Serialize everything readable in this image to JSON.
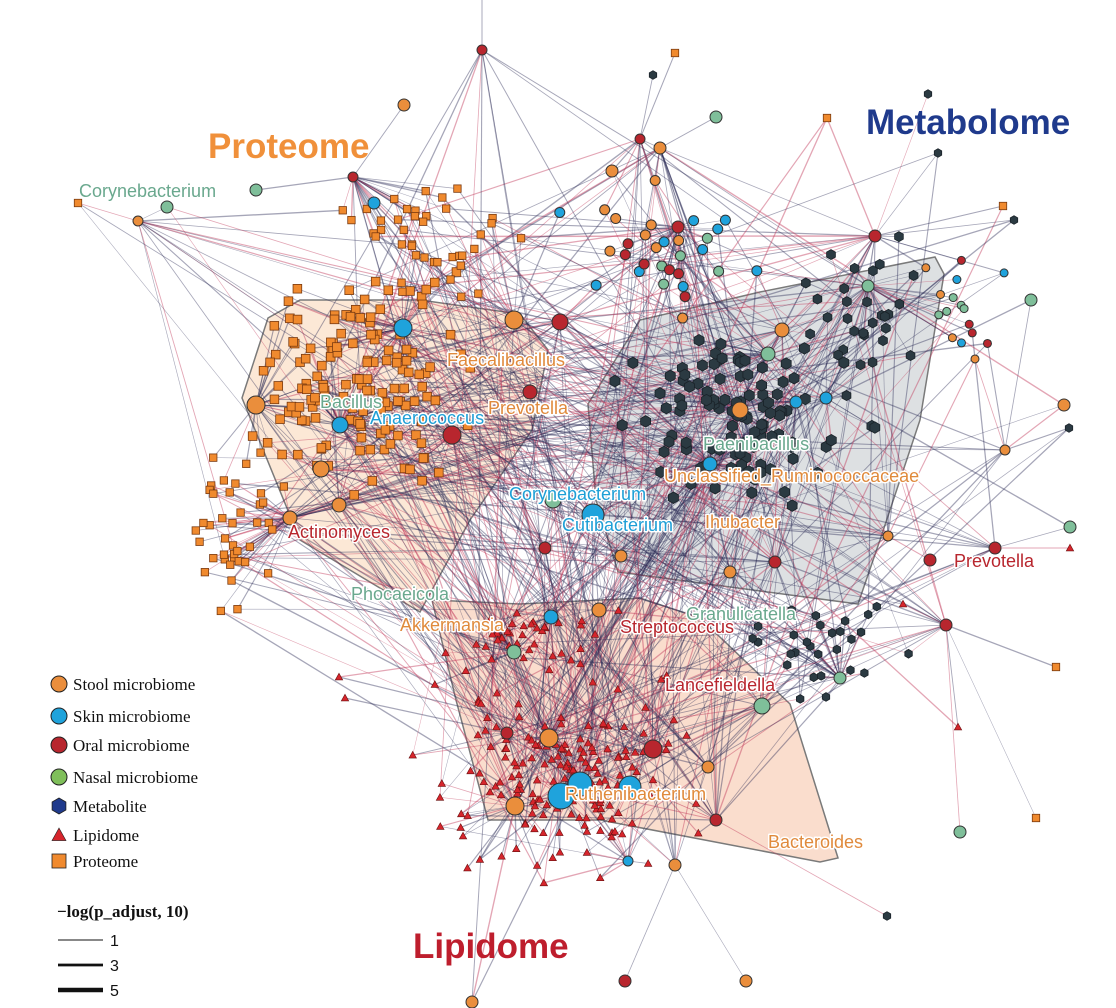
{
  "groups": [
    {
      "key": "proteome",
      "label": "Proteome",
      "color": "#f0903a"
    },
    {
      "key": "metabolome",
      "label": "Metabolome",
      "color": "#1f3a8c"
    },
    {
      "key": "lipidome",
      "label": "Lipidome",
      "color": "#be1e2d"
    }
  ],
  "node_types": {
    "stool": {
      "label": "Stool microbiome",
      "color": "#ea8e3c"
    },
    "skin": {
      "label": "Skin microbiome",
      "color": "#1fa3dc"
    },
    "oral": {
      "label": "Oral microbiome",
      "color": "#b8262e"
    },
    "nasal": {
      "label": "Nasal microbiome",
      "color": "#7fbf5a"
    },
    "metabolite": {
      "label": "Metabolite",
      "color": "#1f3a8c"
    },
    "lipid": {
      "label": "Lipidome",
      "color": "#d6252c"
    },
    "protein": {
      "label": "Proteome",
      "color": "#f08a2e"
    }
  },
  "taxa": [
    {
      "name": "Corynebacterium",
      "type": "nasal",
      "color": "#6aa88e"
    },
    {
      "name": "Faecalibacillus",
      "type": "stool",
      "color": "#e08a3c"
    },
    {
      "name": "Bacillus",
      "type": "nasal",
      "color": "#6aa88e"
    },
    {
      "name": "Anaerococcus",
      "type": "skin",
      "color": "#1e9fd6"
    },
    {
      "name": "Prevotella",
      "type": "stool",
      "color": "#e08a3c"
    },
    {
      "name": "Paenibacillus",
      "type": "nasal",
      "color": "#6aa88e"
    },
    {
      "name": "Unclassified_Ruminococcaceae",
      "type": "stool",
      "color": "#e08a3c"
    },
    {
      "name": "Corynebacterium",
      "type": "skin",
      "color": "#1e9fd6"
    },
    {
      "name": "Cutibacterium",
      "type": "skin",
      "color": "#1e9fd6"
    },
    {
      "name": "Ihubacter",
      "type": "stool",
      "color": "#e08a3c"
    },
    {
      "name": "Actinomyces",
      "type": "oral",
      "color": "#b8262e"
    },
    {
      "name": "Prevotella",
      "type": "oral",
      "color": "#b8262e"
    },
    {
      "name": "Phocaeicola",
      "type": "nasal",
      "color": "#6aa88e"
    },
    {
      "name": "Akkermansia",
      "type": "stool",
      "color": "#e08a3c"
    },
    {
      "name": "Streptococcus",
      "type": "oral",
      "color": "#b8262e"
    },
    {
      "name": "Granulicatella",
      "type": "nasal",
      "color": "#6aa88e"
    },
    {
      "name": "Lancefieldella",
      "type": "oral",
      "color": "#b8262e"
    },
    {
      "name": "Ruthenibacterium",
      "type": "stool",
      "color": "#e08a3c"
    },
    {
      "name": "Bacteroides",
      "type": "stool",
      "color": "#e08a3c"
    }
  ],
  "legend": {
    "items": [
      {
        "label": "Stool microbiome",
        "shape": "circle",
        "color": "#ea8e3c"
      },
      {
        "label": "Skin microbiome",
        "shape": "circle",
        "color": "#1fa3dc"
      },
      {
        "label": "Oral microbiome",
        "shape": "circle",
        "color": "#b8262e"
      },
      {
        "label": "Nasal microbiome",
        "shape": "circle",
        "color": "#7fbf5a"
      },
      {
        "label": "Metabolite",
        "shape": "hexagon",
        "color": "#1f3a8c"
      },
      {
        "label": "Lipidome",
        "shape": "triangle",
        "color": "#d6252c"
      },
      {
        "label": "Proteome",
        "shape": "square",
        "color": "#f08a2e"
      }
    ],
    "edge_title": "−log(p_adjust, 10)",
    "edge_widths": [
      {
        "label": "1",
        "value": 1
      },
      {
        "label": "3",
        "value": 3
      },
      {
        "label": "5",
        "value": 5
      }
    ]
  },
  "style": {
    "edge_color_dark": "#2a2a55",
    "edge_color_pink": "#c0395a",
    "node_outline": "#333333",
    "metabolite_fill": "#2b3a42",
    "hull_proteome": "#fbe0c8",
    "hull_metabolome": "#d2d5d8",
    "hull_lipidome": "#f8d2bc"
  }
}
